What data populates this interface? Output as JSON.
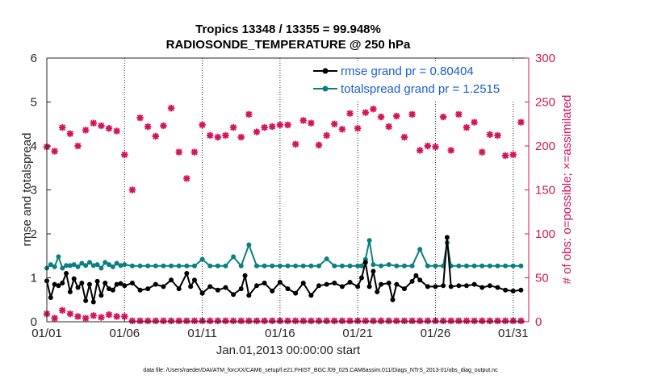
{
  "chart_data": {
    "type": "line",
    "title_line1": "Tropics 13348 / 13355 = 99.948%",
    "title_line2": "RADIOSONDE_TEMPERATURE @ 250 hPa",
    "xlabel": "Jan.01,2013 00:00:00 start",
    "ylabel_left": "rmse and totalspread",
    "ylabel_right": "# of obs: o=possible; ×=assimilated",
    "footer": "data file: /Users/raeder/DAI/ATM_forcXX/CAM6_setup/f.e21.FHIST_BGC.f09_025.CAM6assim.011/Diags_NTrS_2013-01/obs_diag_output.nc",
    "xlim": [
      1,
      32
    ],
    "ylim_left": [
      0,
      6
    ],
    "ylim_right": [
      0,
      300
    ],
    "x_ticks": [
      1,
      6,
      11,
      16,
      21,
      26,
      31
    ],
    "x_tick_labels": [
      "01/01",
      "01/06",
      "01/11",
      "01/16",
      "01/21",
      "01/26",
      "01/31"
    ],
    "y_left_ticks": [
      "0",
      "1",
      "2",
      "3",
      "4",
      "5",
      "6"
    ],
    "y_right_ticks": [
      "0",
      "50",
      "100",
      "150",
      "200",
      "250",
      "300"
    ],
    "legend": [
      "rmse grand pr = 0.80404",
      "totalspread grand pr = 1.2515"
    ],
    "colors": {
      "rmse": "#000000",
      "totalspread": "#0a8080",
      "obs": "#d4145a",
      "legend_text": "#1a5fcc"
    },
    "series": [
      {
        "name": "rmse",
        "axis": "left",
        "x": [
          1.0,
          1.25,
          1.5,
          1.75,
          2.0,
          2.25,
          2.5,
          2.75,
          3.0,
          3.25,
          3.5,
          3.75,
          4.0,
          4.25,
          4.5,
          4.75,
          5.0,
          5.25,
          5.5,
          5.75,
          6.0,
          6.5,
          7.0,
          7.5,
          8.0,
          8.5,
          9.0,
          9.5,
          10.0,
          10.25,
          10.5,
          11.0,
          11.5,
          12.0,
          12.5,
          13.0,
          13.5,
          13.75,
          14.0,
          14.5,
          15.0,
          15.5,
          16.0,
          16.5,
          17.0,
          17.5,
          18.0,
          18.5,
          19.0,
          19.5,
          20.0,
          20.5,
          21.0,
          21.25,
          21.5,
          21.75,
          22.0,
          22.25,
          22.5,
          23.0,
          23.25,
          23.5,
          24.0,
          24.5,
          24.75,
          25.0,
          25.5,
          26.0,
          26.5,
          26.75,
          27.0,
          27.5,
          28.0,
          28.5,
          29.0,
          29.5,
          30.0,
          30.5,
          31.0,
          31.5
        ],
        "y": [
          0.93,
          0.55,
          0.85,
          0.82,
          0.88,
          1.1,
          0.68,
          0.98,
          0.78,
          0.88,
          0.48,
          0.85,
          0.45,
          0.92,
          0.6,
          0.88,
          0.75,
          0.72,
          0.85,
          0.87,
          0.82,
          0.88,
          0.72,
          0.75,
          0.85,
          0.8,
          0.95,
          0.75,
          1.1,
          0.8,
          0.95,
          0.65,
          0.8,
          0.72,
          0.78,
          0.62,
          0.75,
          1.05,
          0.6,
          0.82,
          0.88,
          0.7,
          0.9,
          0.75,
          0.65,
          0.88,
          0.6,
          0.82,
          0.85,
          0.88,
          0.8,
          0.9,
          0.8,
          1.0,
          1.35,
          0.8,
          1.15,
          0.68,
          0.85,
          0.88,
          0.5,
          0.85,
          0.75,
          0.92,
          1.05,
          0.95,
          0.8,
          0.8,
          0.82,
          1.92,
          0.8,
          0.82,
          0.82,
          0.85,
          0.78,
          0.82,
          0.78,
          0.72,
          0.7,
          0.72
        ]
      },
      {
        "name": "totalspread",
        "axis": "left",
        "x": [
          1.0,
          1.25,
          1.5,
          1.75,
          2.0,
          2.25,
          2.5,
          2.75,
          3.0,
          3.25,
          3.5,
          3.75,
          4.0,
          4.25,
          4.5,
          4.75,
          5.0,
          5.25,
          5.5,
          5.75,
          6.0,
          6.5,
          7.0,
          7.5,
          8.0,
          8.5,
          9.0,
          9.5,
          10.0,
          10.5,
          11.0,
          11.5,
          12.0,
          12.5,
          13.0,
          13.5,
          14.0,
          14.5,
          15.0,
          15.5,
          16.0,
          16.5,
          17.0,
          17.5,
          18.0,
          18.5,
          19.0,
          19.5,
          20.0,
          20.5,
          21.0,
          21.25,
          21.5,
          21.75,
          22.0,
          22.5,
          23.0,
          23.5,
          24.0,
          24.5,
          25.0,
          25.5,
          26.0,
          26.5,
          26.75,
          27.0,
          27.5,
          28.0,
          28.5,
          29.0,
          29.5,
          30.0,
          30.5,
          31.0,
          31.5
        ],
        "y": [
          1.22,
          1.3,
          1.25,
          1.48,
          1.22,
          1.28,
          1.28,
          1.3,
          1.25,
          1.33,
          1.28,
          1.35,
          1.28,
          1.3,
          1.22,
          1.35,
          1.3,
          1.25,
          1.33,
          1.28,
          1.3,
          1.27,
          1.27,
          1.27,
          1.27,
          1.27,
          1.27,
          1.27,
          1.27,
          1.27,
          1.42,
          1.27,
          1.27,
          1.27,
          1.48,
          1.27,
          1.75,
          1.27,
          1.27,
          1.27,
          1.27,
          1.27,
          1.27,
          1.27,
          1.27,
          1.27,
          1.43,
          1.27,
          1.27,
          1.27,
          1.27,
          1.27,
          1.42,
          1.85,
          1.3,
          1.27,
          1.3,
          1.27,
          1.27,
          1.27,
          1.65,
          1.27,
          1.27,
          1.27,
          1.8,
          1.27,
          1.27,
          1.27,
          1.27,
          1.27,
          1.27,
          1.27,
          1.27,
          1.27,
          1.27
        ]
      },
      {
        "name": "obs possible",
        "axis": "right",
        "x": [
          1.0,
          1.5,
          2.0,
          2.5,
          3.0,
          3.5,
          4.0,
          4.5,
          5.0,
          5.5,
          6.0,
          6.5,
          7.0,
          7.5,
          8.0,
          8.5,
          9.0,
          9.5,
          10.0,
          10.5,
          11.0,
          11.5,
          12.0,
          12.5,
          13.0,
          13.5,
          14.0,
          14.5,
          15.0,
          15.5,
          16.0,
          16.5,
          17.0,
          17.5,
          18.0,
          18.5,
          19.0,
          19.5,
          20.0,
          20.5,
          21.0,
          21.5,
          22.0,
          22.5,
          23.0,
          23.5,
          24.0,
          24.5,
          25.0,
          25.5,
          26.0,
          26.5,
          27.0,
          27.5,
          28.0,
          28.5,
          29.0,
          29.5,
          30.0,
          30.5,
          31.0,
          31.5
        ],
        "y": [
          199,
          194,
          221,
          214,
          200,
          218,
          226,
          223,
          220,
          217,
          190,
          150,
          232,
          222,
          211,
          223,
          243,
          193,
          163,
          193,
          224,
          212,
          210,
          212,
          221,
          210,
          236,
          216,
          221,
          222,
          224,
          224,
          202,
          229,
          226,
          201,
          212,
          225,
          219,
          237,
          220,
          238,
          242,
          233,
          222,
          234,
          210,
          236,
          195,
          200,
          199,
          233,
          195,
          236,
          221,
          227,
          193,
          213,
          212,
          189,
          190,
          227
        ]
      },
      {
        "name": "obs assimilated",
        "axis": "right",
        "x": [
          1.0,
          1.5,
          2.0,
          2.5,
          3.0,
          3.5,
          4.0,
          4.5,
          5.0,
          5.5,
          6.0,
          6.5,
          7.0,
          7.5,
          8.0,
          8.5,
          9.0,
          9.5,
          10.0,
          10.5,
          11.0,
          11.5,
          12.0,
          12.5,
          13.0,
          13.5,
          14.0,
          14.5,
          15.0,
          15.5,
          16.0,
          16.5,
          17.0,
          17.5,
          18.0,
          18.5,
          19.0,
          19.5,
          20.0,
          20.5,
          21.0,
          21.5,
          22.0,
          22.5,
          23.0,
          23.5,
          24.0,
          24.5,
          25.0,
          25.5,
          26.0,
          26.5,
          27.0,
          27.5,
          28.0,
          28.5,
          29.0,
          29.5,
          30.0,
          30.5,
          31.0,
          31.5
        ],
        "y": [
          9,
          4,
          13,
          9,
          6,
          4,
          7,
          5,
          8,
          6,
          6,
          1,
          1,
          1,
          1,
          1,
          1,
          1,
          1,
          1,
          1,
          1,
          1,
          1,
          1,
          1,
          1,
          1,
          1,
          1,
          1,
          1,
          1,
          1,
          1,
          1,
          1,
          1,
          1,
          1,
          1,
          1,
          1,
          1,
          1,
          1,
          1,
          1,
          1,
          1,
          1,
          1,
          1,
          1,
          1,
          1,
          1,
          1,
          1,
          1,
          1,
          1
        ]
      }
    ]
  }
}
